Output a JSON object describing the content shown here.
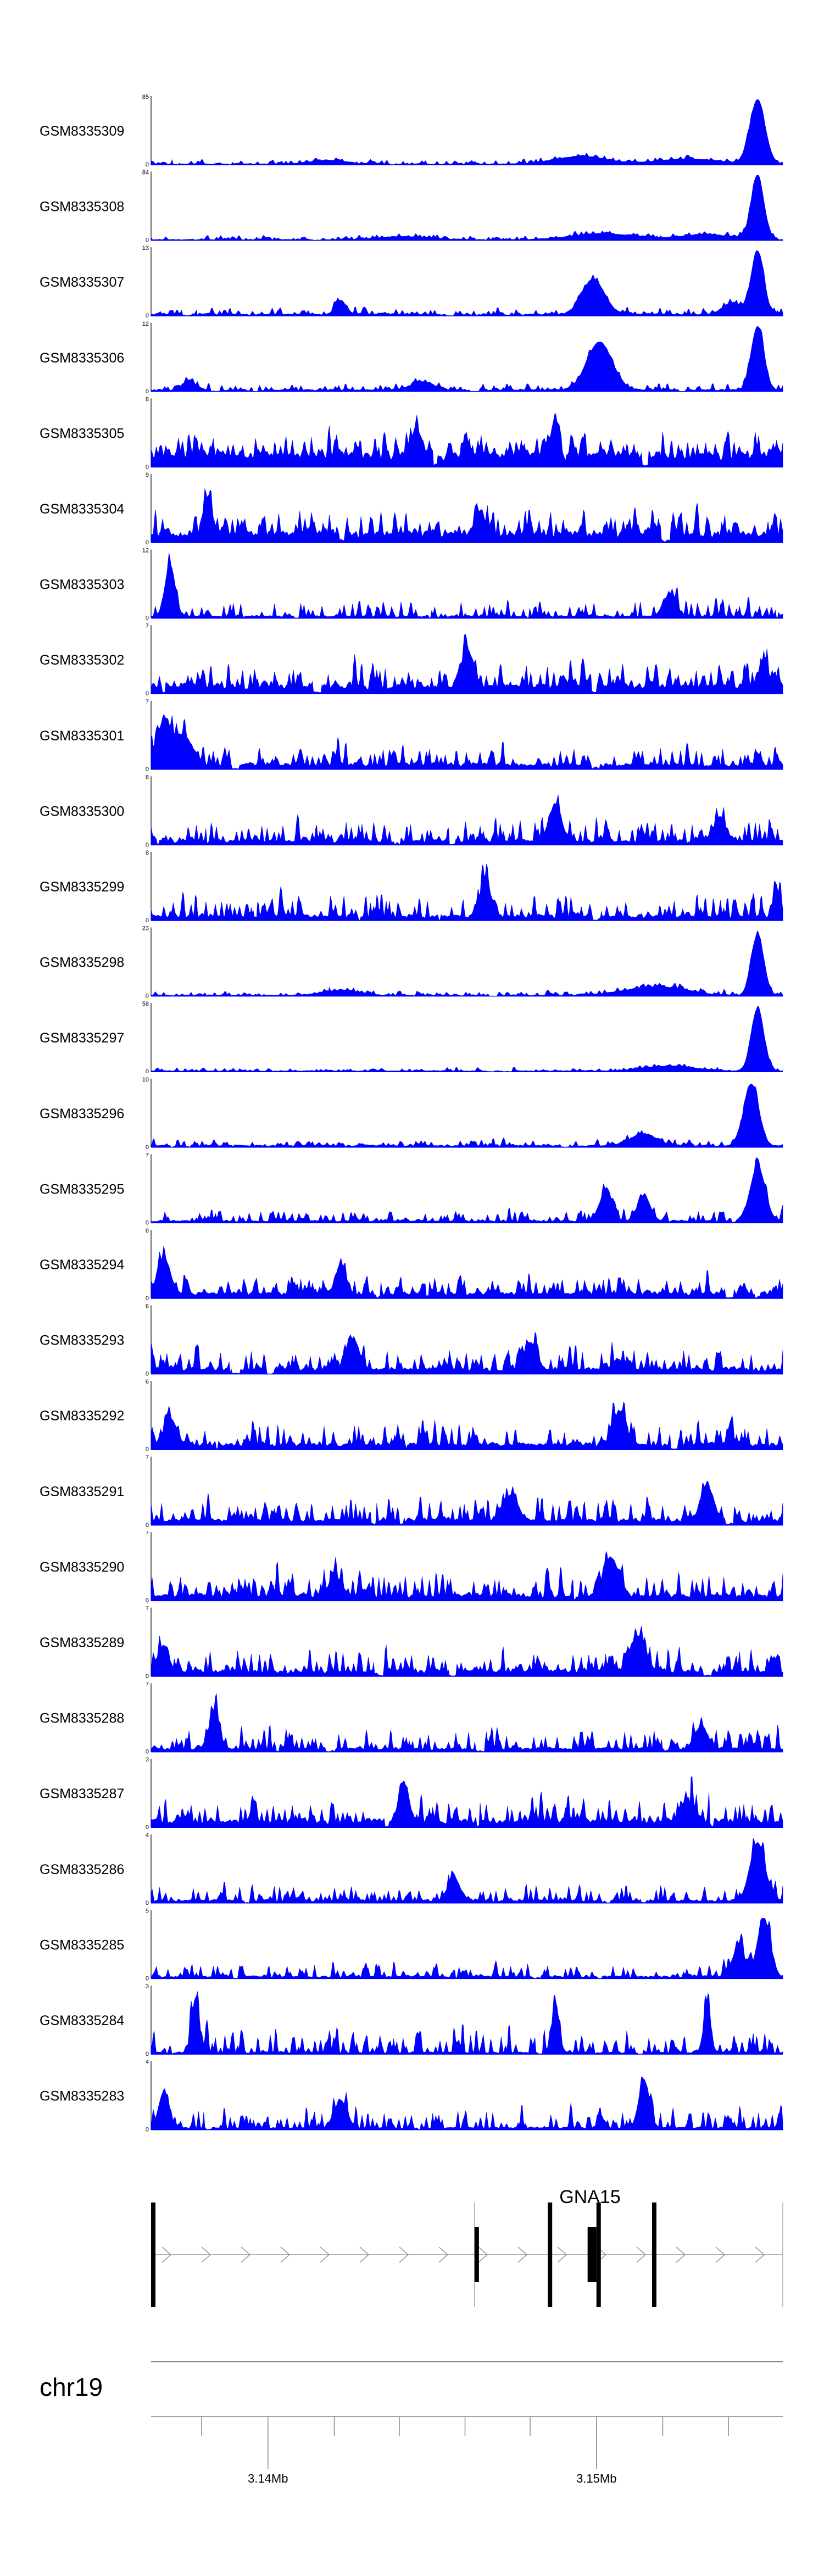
{
  "chart_data": {
    "type": "area",
    "chromosome": "chr19",
    "gene": {
      "name": "GNA15",
      "strand": "+"
    },
    "x_ticks": [
      "3.14Mb",
      "3.15Mb"
    ],
    "series": [
      {
        "name": "GSM8335309",
        "ymax": 85,
        "seed": 309,
        "baseline": 0.02,
        "noise": 0.1,
        "peaks": [
          [
            0.96,
            1.0,
            0.012
          ],
          [
            0.68,
            0.12,
            0.04
          ],
          [
            0.85,
            0.08,
            0.05
          ],
          [
            0.28,
            0.06,
            0.03
          ]
        ]
      },
      {
        "name": "GSM8335308",
        "ymax": 84,
        "seed": 308,
        "baseline": 0.02,
        "noise": 0.1,
        "peaks": [
          [
            0.96,
            1.0,
            0.01
          ],
          [
            0.72,
            0.1,
            0.05
          ],
          [
            0.88,
            0.08,
            0.04
          ],
          [
            0.4,
            0.05,
            0.04
          ]
        ]
      },
      {
        "name": "GSM8335307",
        "ymax": 13,
        "seed": 307,
        "baseline": 0.04,
        "noise": 0.15,
        "peaks": [
          [
            0.96,
            1.0,
            0.01
          ],
          [
            0.7,
            0.55,
            0.018
          ],
          [
            0.3,
            0.22,
            0.008
          ],
          [
            0.92,
            0.18,
            0.015
          ]
        ]
      },
      {
        "name": "GSM8335306",
        "ymax": 12,
        "seed": 306,
        "baseline": 0.04,
        "noise": 0.15,
        "peaks": [
          [
            0.96,
            1.0,
            0.01
          ],
          [
            0.71,
            0.75,
            0.02
          ],
          [
            0.06,
            0.15,
            0.01
          ],
          [
            0.43,
            0.12,
            0.02
          ]
        ]
      },
      {
        "name": "GSM8335305",
        "ymax": 8,
        "seed": 305,
        "baseline": 0.28,
        "noise": 0.55,
        "peaks": [
          [
            0.64,
            0.55,
            0.008
          ],
          [
            0.42,
            0.35,
            0.01
          ]
        ]
      },
      {
        "name": "GSM8335304",
        "ymax": 9,
        "seed": 304,
        "baseline": 0.22,
        "noise": 0.6,
        "peaks": [
          [
            0.09,
            0.55,
            0.006
          ],
          [
            0.52,
            0.35,
            0.008
          ]
        ]
      },
      {
        "name": "GSM8335303",
        "ymax": 12,
        "seed": 303,
        "baseline": 0.05,
        "noise": 0.45,
        "peaks": [
          [
            0.03,
            0.85,
            0.008
          ],
          [
            0.82,
            0.35,
            0.01
          ]
        ]
      },
      {
        "name": "GSM8335302",
        "ymax": 7,
        "seed": 302,
        "baseline": 0.18,
        "noise": 0.55,
        "peaks": [
          [
            0.5,
            0.55,
            0.01
          ],
          [
            0.97,
            0.35,
            0.008
          ]
        ]
      },
      {
        "name": "GSM8335301",
        "ymax": 7,
        "seed": 301,
        "baseline": 0.12,
        "noise": 0.5,
        "peaks": [
          [
            0.02,
            0.65,
            0.01
          ],
          [
            0.05,
            0.45,
            0.015
          ]
        ]
      },
      {
        "name": "GSM8335300",
        "ymax": 8,
        "seed": 300,
        "baseline": 0.1,
        "noise": 0.55,
        "peaks": [
          [
            0.64,
            0.55,
            0.01
          ],
          [
            0.9,
            0.35,
            0.01
          ]
        ]
      },
      {
        "name": "GSM8335299",
        "ymax": 8,
        "seed": 299,
        "baseline": 0.1,
        "noise": 0.55,
        "peaks": [
          [
            0.53,
            0.55,
            0.008
          ],
          [
            0.99,
            0.35,
            0.006
          ]
        ]
      },
      {
        "name": "GSM8335298",
        "ymax": 23,
        "seed": 298,
        "baseline": 0.02,
        "noise": 0.12,
        "peaks": [
          [
            0.96,
            1.0,
            0.01
          ],
          [
            0.8,
            0.14,
            0.05
          ],
          [
            0.3,
            0.08,
            0.03
          ]
        ]
      },
      {
        "name": "GSM8335297",
        "ymax": 58,
        "seed": 297,
        "baseline": 0.02,
        "noise": 0.08,
        "peaks": [
          [
            0.96,
            1.0,
            0.01
          ],
          [
            0.82,
            0.08,
            0.04
          ]
        ]
      },
      {
        "name": "GSM8335296",
        "ymax": 10,
        "seed": 296,
        "baseline": 0.04,
        "noise": 0.14,
        "peaks": [
          [
            0.95,
            0.95,
            0.012
          ],
          [
            0.78,
            0.18,
            0.02
          ]
        ]
      },
      {
        "name": "GSM8335295",
        "ymax": 7,
        "seed": 295,
        "baseline": 0.05,
        "noise": 0.3,
        "peaks": [
          [
            0.96,
            0.9,
            0.012
          ],
          [
            0.72,
            0.5,
            0.01
          ],
          [
            0.78,
            0.42,
            0.01
          ]
        ]
      },
      {
        "name": "GSM8335294",
        "ymax": 8,
        "seed": 294,
        "baseline": 0.12,
        "noise": 0.45,
        "peaks": [
          [
            0.02,
            0.55,
            0.01
          ],
          [
            0.3,
            0.45,
            0.008
          ]
        ]
      },
      {
        "name": "GSM8335293",
        "ymax": 6,
        "seed": 293,
        "baseline": 0.12,
        "noise": 0.55,
        "peaks": [
          [
            0.32,
            0.45,
            0.01
          ],
          [
            0.6,
            0.4,
            0.01
          ]
        ]
      },
      {
        "name": "GSM8335292",
        "ymax": 6,
        "seed": 292,
        "baseline": 0.12,
        "noise": 0.55,
        "peaks": [
          [
            0.74,
            0.5,
            0.01
          ],
          [
            0.03,
            0.4,
            0.01
          ]
        ]
      },
      {
        "name": "GSM8335291",
        "ymax": 7,
        "seed": 291,
        "baseline": 0.12,
        "noise": 0.55,
        "peaks": [
          [
            0.88,
            0.55,
            0.01
          ],
          [
            0.57,
            0.4,
            0.01
          ]
        ]
      },
      {
        "name": "GSM8335290",
        "ymax": 7,
        "seed": 290,
        "baseline": 0.12,
        "noise": 0.6,
        "peaks": [
          [
            0.73,
            0.55,
            0.012
          ],
          [
            0.29,
            0.35,
            0.01
          ]
        ]
      },
      {
        "name": "GSM8335289",
        "ymax": 7,
        "seed": 289,
        "baseline": 0.12,
        "noise": 0.6,
        "peaks": [
          [
            0.77,
            0.55,
            0.012
          ],
          [
            0.02,
            0.4,
            0.01
          ]
        ]
      },
      {
        "name": "GSM8335288",
        "ymax": 7,
        "seed": 288,
        "baseline": 0.08,
        "noise": 0.55,
        "peaks": [
          [
            0.1,
            0.6,
            0.008
          ],
          [
            0.87,
            0.35,
            0.01
          ]
        ]
      },
      {
        "name": "GSM8335287",
        "ymax": 3,
        "seed": 287,
        "baseline": 0.15,
        "noise": 0.55,
        "peaks": [
          [
            0.4,
            0.6,
            0.008
          ],
          [
            0.85,
            0.35,
            0.01
          ]
        ]
      },
      {
        "name": "GSM8335286",
        "ymax": 4,
        "seed": 286,
        "baseline": 0.06,
        "noise": 0.4,
        "peaks": [
          [
            0.96,
            0.9,
            0.012
          ],
          [
            0.48,
            0.3,
            0.01
          ]
        ]
      },
      {
        "name": "GSM8335285",
        "ymax": 5,
        "seed": 285,
        "baseline": 0.05,
        "noise": 0.35,
        "peaks": [
          [
            0.97,
            0.9,
            0.01
          ],
          [
            0.93,
            0.45,
            0.01
          ]
        ]
      },
      {
        "name": "GSM8335284",
        "ymax": 3,
        "seed": 284,
        "baseline": 0.04,
        "noise": 0.6,
        "peaks": [
          [
            0.07,
            0.8,
            0.006
          ],
          [
            0.64,
            0.7,
            0.006
          ],
          [
            0.88,
            0.6,
            0.006
          ]
        ]
      },
      {
        "name": "GSM8335283",
        "ymax": 4,
        "seed": 283,
        "baseline": 0.05,
        "noise": 0.5,
        "peaks": [
          [
            0.78,
            0.75,
            0.008
          ],
          [
            0.02,
            0.55,
            0.008
          ],
          [
            0.3,
            0.45,
            0.01
          ]
        ]
      }
    ],
    "gene_model": {
      "x_range": [
        0,
        1
      ],
      "intron_line": [
        0,
        1
      ],
      "exons": [
        {
          "x": 0.0,
          "w": 0.006,
          "h": "tall"
        },
        {
          "x": 0.512,
          "w": 0.007,
          "h": "short"
        },
        {
          "x": 0.628,
          "w": 0.006,
          "h": "tall"
        },
        {
          "x": 0.691,
          "w": 0.014,
          "h": "short"
        },
        {
          "x": 0.705,
          "w": 0.006,
          "h": "tall"
        },
        {
          "x": 0.793,
          "w": 0.006,
          "h": "tall"
        }
      ],
      "gene_span": [
        0.512,
        0.8
      ]
    },
    "axis": {
      "range_label": [
        "3.14Mb",
        "3.15Mb"
      ],
      "major_ticks": [
        0.185,
        0.705
      ],
      "minor_ticks": [
        0.08,
        0.29,
        0.393,
        0.497,
        0.6,
        0.81,
        0.914
      ]
    },
    "colors": {
      "fill": "#0000ff",
      "axis": "#000000",
      "intron": "#9a9a9a",
      "chrom_line": "#888888"
    }
  }
}
